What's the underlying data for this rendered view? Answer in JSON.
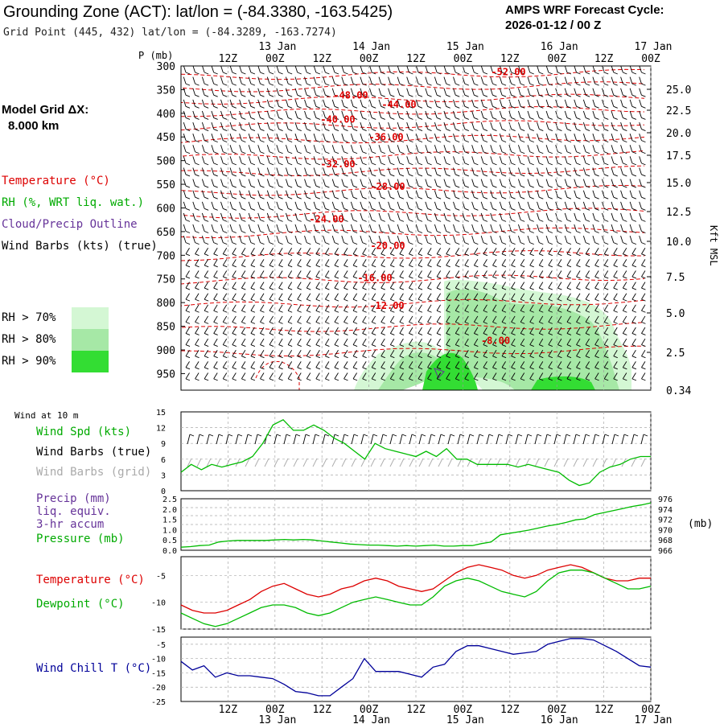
{
  "header": {
    "title": "Grounding Zone (ACT):  lat/lon = (-84.3380, -163.5425)",
    "cycle_line1": "AMPS WRF Forecast Cycle:",
    "cycle_line2": "2026-01-12 / 00  Z",
    "grid_point": "Grid Point (445, 432) lat/lon = (-84.3289, -163.7274)"
  },
  "left_legend": {
    "model_grid_1": "Model Grid ΔX:",
    "model_grid_2": "8.000 km",
    "temperature": "Temperature (°C)",
    "rh": "RH (%, WRT liq. wat.)",
    "cloud": "Cloud/Precip Outline",
    "wind": "Wind Barbs (kts) (true)",
    "rh70": "RH > 70%",
    "rh80": "RH > 80%",
    "rh90": "RH > 90%",
    "wind10": "Wind at 10 m",
    "wspd": "Wind Spd (kts)",
    "wbarbs_true": "Wind Barbs (true)",
    "wbarbs_grid": "Wind Barbs (grid)",
    "precip1": "Precip (mm)",
    "precip2": "liq. equiv.",
    "precip3": "3-hr accum",
    "pressure": "Pressure (mb)",
    "temp2": "Temperature (°C)",
    "dewpoint": "Dewpoint (°C)",
    "windchill": "Wind Chill T (°C)",
    "p_unit": "P (mb)",
    "kft": "Kft MSL",
    "mb_unit": "(mb)"
  },
  "colors": {
    "temperature": "#dd0000",
    "rh": "#00aa00",
    "cloud": "#663399",
    "windchill": "#000099",
    "grid_barb": "#aaaaaa",
    "rh70": "#d4f7d4",
    "rh80": "#a6e8a6",
    "rh90": "#33dd33"
  },
  "chart_data": [
    {
      "type": "line",
      "title": "cross-section",
      "time_ticks": [
        "12Z",
        "00Z",
        "12Z",
        "00Z",
        "12Z",
        "00Z",
        "12Z",
        "00Z",
        "12Z",
        "00Z"
      ],
      "date_labels": [
        "13 Jan",
        "14 Jan",
        "15 Jan",
        "16 Jan",
        "17 Jan"
      ],
      "pressure_levels": [
        300,
        350,
        400,
        450,
        500,
        550,
        600,
        650,
        700,
        750,
        800,
        850,
        900,
        950
      ],
      "height_labels": [
        "25.0",
        "22.5",
        "20.0",
        "17.5",
        "15.0",
        "12.5",
        "10.0",
        "7.5",
        "5.0",
        "2.5",
        "0.34"
      ],
      "temperature_contour_labels": [
        {
          "label": "-52.00",
          "p": 311
        },
        {
          "label": "-48.00",
          "p": 360
        },
        {
          "label": "-44.00",
          "p": 380
        },
        {
          "label": "-40.00",
          "p": 411
        },
        {
          "label": "-36.00",
          "p": 449
        },
        {
          "label": "-32.00",
          "p": 506
        },
        {
          "label": "-28.00",
          "p": 553
        },
        {
          "label": "-24.00",
          "p": 622
        },
        {
          "label": "-20.00",
          "p": 678
        },
        {
          "label": "-16.00",
          "p": 746
        },
        {
          "label": "-12.00",
          "p": 805
        },
        {
          "label": "-8.00",
          "p": 879
        }
      ]
    },
    {
      "type": "line",
      "title": "wind at 10 m",
      "y_ticks": [
        0,
        3,
        6,
        9,
        12,
        15
      ],
      "ylim": [
        0,
        15
      ],
      "series": [
        {
          "name": "Wind Spd (kts)",
          "values": [
            3.5,
            5,
            4,
            5,
            4.5,
            5,
            5.5,
            6.5,
            9,
            12.5,
            13.5,
            11.5,
            11.5,
            12.5,
            11.5,
            10,
            9,
            7.5,
            6,
            9,
            8,
            7.5,
            7,
            6.5,
            7.5,
            6.5,
            8,
            6,
            6,
            5,
            5,
            5,
            5,
            4.5,
            5,
            4.5,
            4,
            3.5,
            2,
            1,
            1.5,
            3.5,
            4.5,
            5,
            6,
            6.5,
            6.5
          ]
        }
      ]
    },
    {
      "type": "line",
      "title": "precip and pressure",
      "y_ticks_left": [
        0.0,
        0.5,
        1.0,
        1.5,
        2.0,
        2.5
      ],
      "y_ticks_right": [
        966,
        968,
        970,
        972,
        974,
        976
      ],
      "series": [
        {
          "name": "Pressure (mb)",
          "values": [
            966.6,
            966.7,
            966.9,
            967.0,
            967.6,
            967.8,
            967.9,
            967.9,
            967.9,
            967.9,
            968.0,
            968.1,
            968.0,
            968.1,
            968.0,
            967.8,
            967.6,
            967.4,
            967.2,
            967.1,
            967.0,
            967.0,
            966.9,
            966.8,
            966.9,
            966.8,
            966.9,
            967.0,
            966.8,
            966.8,
            966.9,
            966.9,
            967.3,
            967.6,
            969.0,
            969.3,
            969.6,
            969.9,
            970.3,
            970.7,
            971.0,
            971.4,
            971.9,
            972.1,
            972.9,
            973.3,
            973.7,
            974.1,
            974.5,
            974.8,
            975.2
          ]
        }
      ]
    },
    {
      "type": "line",
      "title": "temperature and dewpoint",
      "y_ticks": [
        -5,
        -10,
        -15
      ],
      "ylim": [
        -15,
        -1.5
      ],
      "series": [
        {
          "name": "Temperature (°C)",
          "values": [
            -10.5,
            -11.5,
            -12,
            -12,
            -11.5,
            -10.5,
            -9.5,
            -8,
            -7,
            -6.5,
            -7.5,
            -8.5,
            -9,
            -8.5,
            -7.5,
            -7,
            -6,
            -5.5,
            -6,
            -7,
            -7.5,
            -8,
            -7.5,
            -6,
            -4.5,
            -3.5,
            -3,
            -3.5,
            -4,
            -5,
            -5.5,
            -5,
            -4,
            -3.5,
            -3,
            -3.5,
            -4.5,
            -5.5,
            -6,
            -6,
            -5.5,
            -5.5
          ]
        },
        {
          "name": "Dewpoint (°C)",
          "values": [
            -12,
            -13,
            -14,
            -14.5,
            -14,
            -13,
            -12,
            -11,
            -10.5,
            -10.5,
            -11,
            -12,
            -12.5,
            -12,
            -11,
            -10,
            -9.5,
            -9,
            -9.5,
            -10,
            -10.5,
            -10.5,
            -9,
            -7,
            -6,
            -5.5,
            -6,
            -7,
            -8,
            -8.5,
            -9,
            -8,
            -6,
            -4.5,
            -4,
            -4,
            -4.5,
            -5.5,
            -6.5,
            -7.5,
            -7.5,
            -7
          ]
        }
      ]
    },
    {
      "type": "line",
      "title": "wind chill",
      "y_ticks": [
        -5,
        -10,
        -15,
        -20,
        -25
      ],
      "ylim": [
        -25,
        -2.5
      ],
      "series": [
        {
          "name": "Wind Chill T (°C)",
          "values": [
            -11,
            -14,
            -12.5,
            -16.5,
            -15,
            -16,
            -16,
            -16.5,
            -17,
            -19,
            -21.5,
            -22,
            -23,
            -23,
            -20,
            -17,
            -10,
            -14.5,
            -14.5,
            -14.5,
            -15.5,
            -16.5,
            -13,
            -12,
            -7.5,
            -5.5,
            -5.5,
            -6.5,
            -7.5,
            -8.5,
            -8,
            -7.5,
            -5,
            -4,
            -3,
            -3,
            -3.5,
            -5.5,
            -7.5,
            -10,
            -12.5,
            -13
          ]
        }
      ]
    }
  ]
}
